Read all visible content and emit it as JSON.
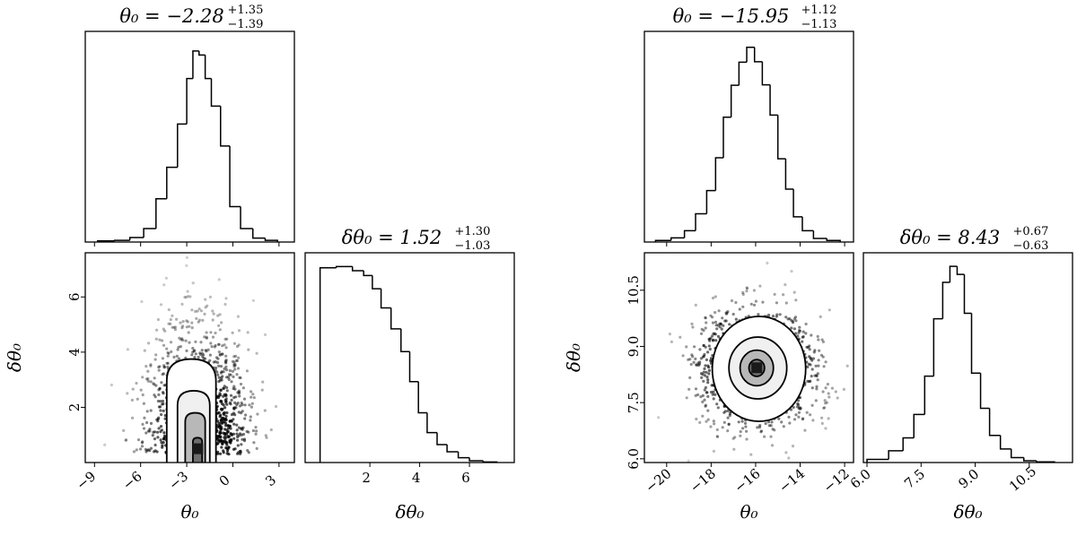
{
  "chart_data": [
    {
      "type": "corner",
      "name": "left",
      "parameters": [
        "θ0",
        "δθ0"
      ],
      "titles": [
        {
          "param": "θ0",
          "median": "−2.28",
          "plus": "+1.35",
          "minus": "−1.39"
        },
        {
          "param": "δθ0",
          "median": "1.52",
          "plus": "+1.30",
          "minus": "−1.03"
        }
      ],
      "xlabels": [
        "θ0",
        "δθ0"
      ],
      "ylabel": "δθ0",
      "hist1": {
        "xlim": [
          -9.6,
          4.0
        ],
        "bin_edges": [
          -8.8,
          -7.7,
          -6.7,
          -5.8,
          -5.0,
          -4.3,
          -3.6,
          -3.0,
          -2.6,
          -2.2,
          -1.8,
          -1.4,
          -0.8,
          -0.2,
          0.5,
          1.3,
          2.1,
          2.9
        ],
        "counts": [
          2,
          3,
          8,
          24,
          77,
          133,
          210,
          291,
          340,
          333,
          291,
          242,
          171,
          63,
          24,
          7,
          3
        ],
        "ymax": 375
      },
      "hist2": {
        "xlim": [
          -0.6,
          7.8
        ],
        "bin_edges": [
          0.0,
          0.65,
          1.3,
          1.75,
          2.1,
          2.45,
          2.85,
          3.25,
          3.6,
          3.95,
          4.3,
          4.7,
          5.1,
          5.55,
          6.0,
          6.55,
          7.1
        ],
        "counts": [
          325,
          327,
          320,
          312,
          290,
          258,
          223,
          185,
          135,
          83,
          50,
          30,
          18,
          8,
          3,
          1
        ],
        "ymax": 350
      },
      "scatter": {
        "xlim": [
          -9.6,
          4.0
        ],
        "ylim": [
          0.0,
          7.6
        ],
        "center": [
          -2.28,
          0.3
        ],
        "sigma": [
          1.4,
          1.5
        ],
        "contours": [
          {
            "x": [
              -4.3,
              -1.1
            ],
            "y": [
              0.0,
              3.75
            ]
          },
          {
            "x": [
              -3.6,
              -1.5
            ],
            "y": [
              0.0,
              2.6
            ]
          },
          {
            "x": [
              -3.1,
              -1.8
            ],
            "y": [
              0.0,
              1.8
            ]
          },
          {
            "x": [
              -2.6,
              -2.0
            ],
            "y": [
              0.0,
              0.9
            ]
          }
        ]
      },
      "ticks": {
        "theta_x": [
          -9,
          -6,
          -3,
          0,
          3
        ],
        "theta_x_labels": [
          "−9",
          "−6",
          "−3",
          "0",
          "3"
        ],
        "dtheta": [
          2,
          4,
          6
        ],
        "dtheta_labels": [
          "2",
          "4",
          "6"
        ]
      }
    },
    {
      "type": "corner",
      "name": "right",
      "parameters": [
        "θ0",
        "δθ0"
      ],
      "titles": [
        {
          "param": "θ0",
          "median": "−15.95",
          "plus": "+1.12",
          "minus": "−1.13"
        },
        {
          "param": "δθ0",
          "median": "8.43",
          "plus": "+0.67",
          "minus": "−0.63"
        }
      ],
      "xlabels": [
        "θ0",
        "δθ0"
      ],
      "ylabel": "δθ0",
      "hist1": {
        "xlim": [
          -21.0,
          -11.6
        ],
        "bin_edges": [
          -20.5,
          -19.8,
          -19.2,
          -18.7,
          -18.2,
          -17.8,
          -17.45,
          -17.1,
          -16.75,
          -16.4,
          -16.05,
          -15.7,
          -15.35,
          -15.0,
          -14.65,
          -14.3,
          -13.9,
          -13.4,
          -12.8,
          -12.2
        ],
        "counts": [
          3,
          8,
          22,
          55,
          100,
          164,
          243,
          305,
          350,
          379,
          351,
          306,
          247,
          162,
          103,
          49,
          22,
          7,
          3
        ],
        "ymax": 410
      },
      "hist2": {
        "xlim": [
          5.9,
          11.7
        ],
        "bin_edges": [
          6.0,
          6.6,
          7.0,
          7.3,
          7.6,
          7.85,
          8.1,
          8.3,
          8.5,
          8.7,
          8.9,
          9.15,
          9.4,
          9.7,
          10.0,
          10.35,
          10.7,
          11.2
        ],
        "counts": [
          5,
          19,
          40,
          78,
          140,
          233,
          292,
          318,
          305,
          242,
          145,
          88,
          44,
          22,
          8,
          3,
          1
        ],
        "ymax": 340
      },
      "scatter": {
        "xlim": [
          -21.0,
          -11.6
        ],
        "ylim": [
          5.9,
          11.5
        ],
        "center": [
          -15.95,
          8.43
        ],
        "sigma": [
          1.13,
          0.65
        ],
        "contours": [
          {
            "x": [
              -17.95,
              -13.75
            ],
            "y": [
              7.0,
              9.8
            ]
          },
          {
            "x": [
              -17.2,
              -14.6
            ],
            "y": [
              7.6,
              9.25
            ]
          },
          {
            "x": [
              -16.7,
              -15.2
            ],
            "y": [
              7.95,
              8.9
            ]
          },
          {
            "x": [
              -16.3,
              -15.6
            ],
            "y": [
              8.2,
              8.65
            ]
          }
        ]
      },
      "ticks": {
        "theta_x": [
          -20,
          -18,
          -16,
          -14,
          -12
        ],
        "theta_x_labels": [
          "−20",
          "−18",
          "−16",
          "−14",
          "−12"
        ],
        "dtheta": [
          6.0,
          7.5,
          9.0,
          10.5
        ],
        "dtheta_labels": [
          "6.0",
          "7.5",
          "9.0",
          "10.5"
        ]
      }
    }
  ]
}
